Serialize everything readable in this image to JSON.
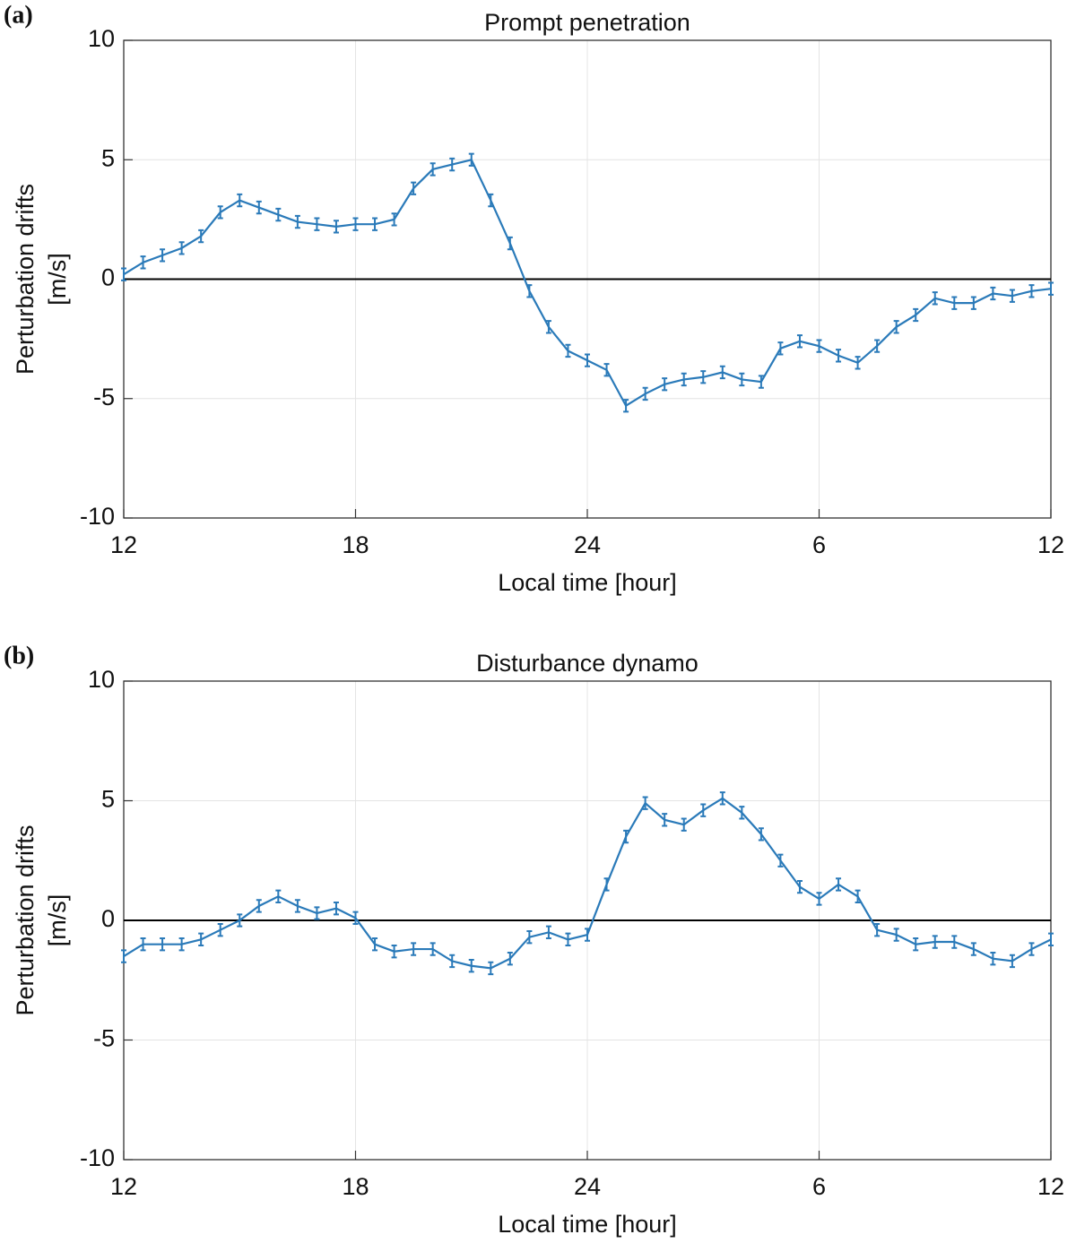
{
  "chart_data": [
    {
      "type": "line",
      "panel_label": "(a)",
      "title": "Prompt penetration",
      "xlabel": "Local time [hour]",
      "ylabel": [
        "Perturbation drifts",
        "[m/s]"
      ],
      "x": [
        12,
        12.5,
        13,
        13.5,
        14,
        14.5,
        15,
        15.5,
        16,
        16.5,
        17,
        17.5,
        18,
        18.5,
        19,
        19.5,
        20,
        20.5,
        21,
        21.5,
        22,
        22.5,
        23,
        23.5,
        24,
        24.5,
        25,
        25.5,
        26,
        26.5,
        27,
        27.5,
        28,
        28.5,
        29,
        29.5,
        30,
        30.5,
        31,
        31.5,
        32,
        32.5,
        33,
        33.5,
        34,
        34.5,
        35,
        35.5,
        36
      ],
      "values": [
        0.2,
        0.7,
        1.0,
        1.3,
        1.8,
        2.8,
        3.3,
        3.0,
        2.7,
        2.4,
        2.3,
        2.2,
        2.3,
        2.3,
        2.5,
        3.8,
        4.6,
        4.8,
        5.0,
        3.3,
        1.5,
        -0.5,
        -2.0,
        -3.0,
        -3.4,
        -3.8,
        -5.3,
        -4.8,
        -4.4,
        -4.2,
        -4.1,
        -3.9,
        -4.2,
        -4.3,
        -2.9,
        -2.6,
        -2.8,
        -3.2,
        -3.5,
        -2.8,
        -2.0,
        -1.5,
        -0.8,
        -1.0,
        -1.0,
        -0.6,
        -0.7,
        -0.5,
        -0.4
      ],
      "error": 0.25,
      "color": "#2a7ab9",
      "reference_line": 0,
      "xlim": [
        12,
        36
      ],
      "xticks": [
        12,
        18,
        24,
        {
          "value": 30,
          "label": "6"
        },
        {
          "value": 36,
          "label": "12"
        }
      ],
      "ylim": [
        -10,
        10
      ],
      "yticks": [
        -10,
        -5,
        0,
        5,
        10
      ],
      "grid": true
    },
    {
      "type": "line",
      "panel_label": "(b)",
      "title": "Disturbance dynamo",
      "xlabel": "Local time [hour]",
      "ylabel": [
        "Perturbation drifts",
        "[m/s]"
      ],
      "x": [
        12,
        12.5,
        13,
        13.5,
        14,
        14.5,
        15,
        15.5,
        16,
        16.5,
        17,
        17.5,
        18,
        18.5,
        19,
        19.5,
        20,
        20.5,
        21,
        21.5,
        22,
        22.5,
        23,
        23.5,
        24,
        24.5,
        25,
        25.5,
        26,
        26.5,
        27,
        27.5,
        28,
        28.5,
        29,
        29.5,
        30,
        30.5,
        31,
        31.5,
        32,
        32.5,
        33,
        33.5,
        34,
        34.5,
        35,
        35.5,
        36
      ],
      "values": [
        -1.5,
        -1.0,
        -1.0,
        -1.0,
        -0.8,
        -0.4,
        0.0,
        0.6,
        1.0,
        0.6,
        0.3,
        0.5,
        0.1,
        -1.0,
        -1.3,
        -1.2,
        -1.2,
        -1.7,
        -1.9,
        -2.0,
        -1.6,
        -0.7,
        -0.5,
        -0.8,
        -0.6,
        1.5,
        3.5,
        4.9,
        4.2,
        4.0,
        4.6,
        5.1,
        4.5,
        3.6,
        2.5,
        1.4,
        0.9,
        1.5,
        1.0,
        -0.4,
        -0.6,
        -1.0,
        -0.9,
        -0.9,
        -1.2,
        -1.6,
        -1.7,
        -1.2,
        -0.8
      ],
      "error": 0.25,
      "color": "#2a7ab9",
      "reference_line": 0,
      "xlim": [
        12,
        36
      ],
      "xticks": [
        12,
        18,
        24,
        {
          "value": 30,
          "label": "6"
        },
        {
          "value": 36,
          "label": "12"
        }
      ],
      "ylim": [
        -10,
        10
      ],
      "yticks": [
        -10,
        -5,
        0,
        5,
        10
      ],
      "grid": true
    }
  ]
}
